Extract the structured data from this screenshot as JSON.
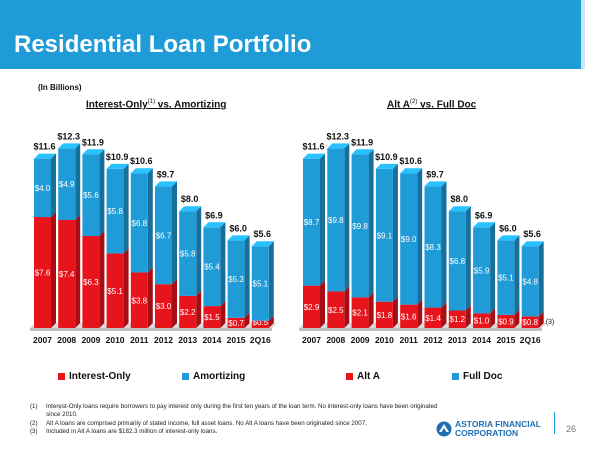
{
  "page": {
    "title": "Residential Loan Portfolio",
    "unit_note": "(In Billions)",
    "page_number": "26",
    "logo_line1": "ASTORIA FINANCIAL",
    "logo_line2": "CORPORATION"
  },
  "colors": {
    "red": "#e8141b",
    "blue": "#1f9bd7",
    "header": "#1f9bd7"
  },
  "left_title": {
    "text": "Interest-Only",
    "sup": "(1)",
    "rest": " vs. Amortizing"
  },
  "right_title": {
    "text": "Alt A",
    "sup": "(2)",
    "rest": " vs.  Full Doc"
  },
  "legend": {
    "left": [
      "Interest-Only",
      "Amortizing"
    ],
    "right": [
      "Alt A",
      "Full Doc"
    ]
  },
  "footnotes": [
    {
      "n": "(1)",
      "text": "Interest-Only loans require borrowers to pay interest only during the first ten years of the loan term. No interest-only loans have been originated since 2010."
    },
    {
      "n": "(2)",
      "text": "Alt A loans are comprised primarily of stated income, full asset loans. No Alt A loans have been originated since 2007."
    },
    {
      "n": "(3)",
      "text": "Included in Alt A loans are $182.3 million of interest-only loans."
    }
  ],
  "chart_data": [
    {
      "type": "bar",
      "stacked": true,
      "categories": [
        "2007",
        "2008",
        "2009",
        "2010",
        "2011",
        "2012",
        "2013",
        "2014",
        "2015",
        "2Q16"
      ],
      "series": [
        {
          "name": "Interest-Only",
          "color": "#e8141b",
          "values": [
            7.6,
            7.4,
            6.3,
            5.1,
            3.8,
            3.0,
            2.2,
            1.5,
            0.7,
            0.5
          ],
          "labels": [
            "$7.6",
            "$7.4",
            "$6.3",
            "$5.1",
            "$3.8",
            "$3.0",
            "$2.2",
            "$1.5",
            "$0.7",
            "$0.5"
          ]
        },
        {
          "name": "Amortizing",
          "color": "#1f9bd7",
          "values": [
            4.0,
            4.9,
            5.6,
            5.8,
            6.8,
            6.7,
            5.8,
            5.4,
            5.3,
            5.1
          ],
          "labels": [
            "$4.0",
            "$4.9",
            "$5.6",
            "$5.8",
            "$6.8",
            "$6.7",
            "$5.8",
            "$5.4",
            "$5.3",
            "$5.1"
          ]
        }
      ],
      "totals": [
        "$11.6",
        "$12.3",
        "$11.9",
        "$10.9",
        "$10.6",
        "$9.7",
        "$8.0",
        "$6.9",
        "$6.0",
        "$5.6"
      ],
      "total_values": [
        11.6,
        12.3,
        11.9,
        10.9,
        10.6,
        9.7,
        8.0,
        6.9,
        6.0,
        5.6
      ],
      "title": "Interest-Only vs. Amortizing",
      "legend_position": "bottom",
      "grid": false
    },
    {
      "type": "bar",
      "stacked": true,
      "categories": [
        "2007",
        "2008",
        "2009",
        "2010",
        "2011",
        "2012",
        "2013",
        "2014",
        "2015",
        "2Q16"
      ],
      "series": [
        {
          "name": "Alt A",
          "color": "#e8141b",
          "values": [
            2.9,
            2.5,
            2.1,
            1.8,
            1.6,
            1.4,
            1.2,
            1.0,
            0.9,
            0.8
          ],
          "labels": [
            "$2.9",
            "$2.5",
            "$2.1",
            "$1.8",
            "$1.6",
            "$1.4",
            "$1.2",
            "$1.0",
            "$0.9",
            "$0.8"
          ]
        },
        {
          "name": "Full Doc",
          "color": "#1f9bd7",
          "values": [
            8.7,
            9.8,
            9.8,
            9.1,
            9.0,
            8.3,
            6.8,
            5.9,
            5.1,
            4.8
          ],
          "labels": [
            "$8.7",
            "$9.8",
            "$9.8",
            "$9.1",
            "$9.0",
            "$8.3",
            "$6.8",
            "$5.9",
            "$5.1",
            "$4.8"
          ]
        }
      ],
      "totals": [
        "$11.6",
        "$12.3",
        "$11.9",
        "$10.9",
        "$10.6",
        "$9.7",
        "$8.0",
        "$6.9",
        "$6.0",
        "$5.6"
      ],
      "total_values": [
        11.6,
        12.3,
        11.9,
        10.9,
        10.6,
        9.7,
        8.0,
        6.9,
        6.0,
        5.6
      ],
      "annotation": "(3)",
      "title": "Alt A vs. Full Doc",
      "legend_position": "bottom",
      "grid": false
    }
  ]
}
